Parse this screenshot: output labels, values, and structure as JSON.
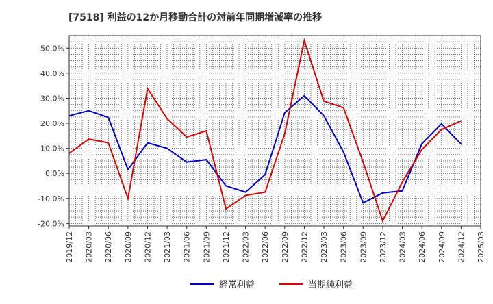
{
  "chart_data": {
    "type": "line",
    "title": "[7518]  利益の12か月移動合計の対前年同期増減率の推移",
    "xlabel": "",
    "ylabel": "",
    "x": [
      "2019/12",
      "2020/03",
      "2020/06",
      "2020/09",
      "2020/12",
      "2021/03",
      "2021/06",
      "2021/09",
      "2021/12",
      "2022/03",
      "2022/06",
      "2022/09",
      "2022/12",
      "2023/03",
      "2023/06",
      "2023/09",
      "2023/12",
      "2024/03",
      "2024/06",
      "2024/09",
      "2024/12",
      "2025/03"
    ],
    "ylim": [
      -21,
      55
    ],
    "yticks": [
      -20,
      -10,
      0,
      10,
      20,
      30,
      40,
      50
    ],
    "ytick_labels": [
      "-20.0%",
      "-10.0%",
      "0.0%",
      "10.0%",
      "20.0%",
      "30.0%",
      "40.0%",
      "50.0%"
    ],
    "grid": true,
    "legend_position": "bottom",
    "series": [
      {
        "name": "経常利益",
        "color": "#0000cc",
        "values": [
          23.0,
          25.0,
          22.3,
          1.5,
          12.2,
          10.0,
          4.5,
          5.5,
          -5.0,
          -7.5,
          -0.5,
          24.2,
          31.0,
          23.0,
          8.5,
          -11.8,
          -7.8,
          -7.0,
          11.8,
          19.8,
          11.7,
          null
        ]
      },
      {
        "name": "当期純利益",
        "color": "#dd0000",
        "values": [
          8.0,
          13.7,
          12.2,
          -10.0,
          33.8,
          21.8,
          14.5,
          17.0,
          -14.2,
          -8.8,
          -7.5,
          15.8,
          53.0,
          28.8,
          26.2,
          4.5,
          -19.0,
          -3.5,
          9.5,
          17.5,
          21.0,
          null
        ]
      }
    ]
  }
}
